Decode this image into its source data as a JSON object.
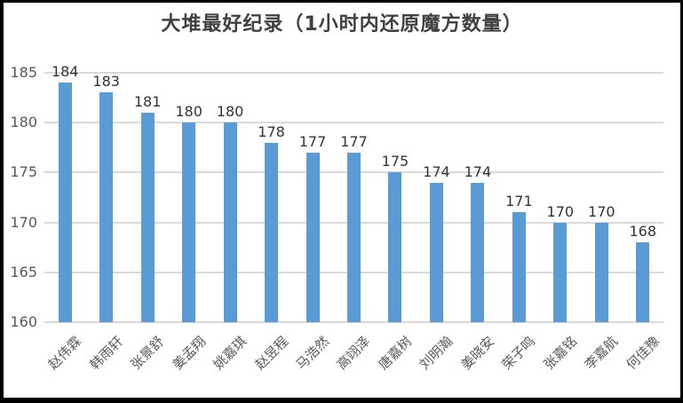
{
  "chart_data": {
    "type": "bar",
    "title": "大堆最好纪录（1小时内还原魔方数量）",
    "categories": [
      "赵伟霖",
      "韩雨轩",
      "张景舒",
      "姜孟翔",
      "姚嘉琪",
      "赵昱程",
      "马浩然",
      "高翊泽",
      "唐嘉树",
      "刘明瀚",
      "姜晓安",
      "荣子鸣",
      "张嘉铭",
      "李嘉航",
      "何佳豫"
    ],
    "values": [
      184,
      183,
      181,
      180,
      180,
      178,
      177,
      177,
      175,
      174,
      174,
      171,
      170,
      170,
      168
    ],
    "xlabel": "",
    "ylabel": "",
    "ylim": [
      160,
      185
    ],
    "yticks": [
      160,
      165,
      170,
      175,
      180,
      185
    ],
    "grid": "horizontal",
    "legend": "none",
    "data_labels": true,
    "colors": {
      "bar": "#5B9BD5",
      "gridline": "#D9D9D9",
      "axis_text": "#595959",
      "value_label": "#333333",
      "title": "#404040",
      "frame_border": "#000000",
      "background": "#FFFFFF"
    }
  }
}
